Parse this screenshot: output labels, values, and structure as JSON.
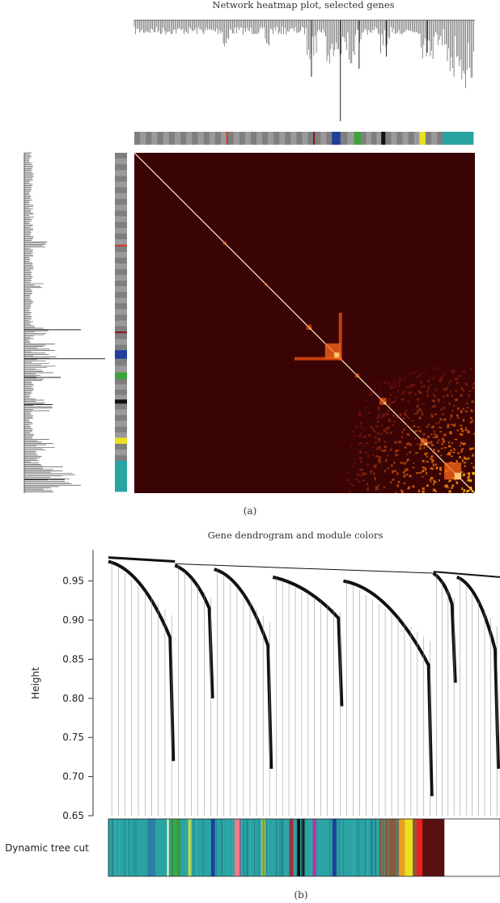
{
  "panel_a": {
    "title": "Network heatmap plot, selected genes",
    "caption": "(a)"
  },
  "panel_b": {
    "title": "Gene dendrogram and module colors",
    "ylabel": "Height",
    "row_label": "Dynamic tree cut",
    "caption": "(b)"
  },
  "chart_data": [
    {
      "type": "heatmap",
      "title": "Network heatmap plot, selected genes",
      "description_values": "gene-gene topological overlap, ordered by dendrogram",
      "module_color_bar": [
        {
          "color": "#8b8b8b",
          "fraction": 0.27
        },
        {
          "color": "#d23a2a",
          "fraction": 0.005
        },
        {
          "color": "#8b8b8b",
          "fraction": 0.25
        },
        {
          "color": "#8b1a1a",
          "fraction": 0.005
        },
        {
          "color": "#8b8b8b",
          "fraction": 0.05
        },
        {
          "color": "#1f3f9a",
          "fraction": 0.025
        },
        {
          "color": "#8b8b8b",
          "fraction": 0.04
        },
        {
          "color": "#3ca33c",
          "fraction": 0.02
        },
        {
          "color": "#8b8b8b",
          "fraction": 0.06
        },
        {
          "color": "#111111",
          "fraction": 0.012
        },
        {
          "color": "#8b8b8b",
          "fraction": 0.1
        },
        {
          "color": "#e8e020",
          "fraction": 0.018
        },
        {
          "color": "#8b8b8b",
          "fraction": 0.05
        },
        {
          "color": "#2aa3a3",
          "fraction": 0.09
        }
      ],
      "module_blocks": [
        {
          "position": 0.27,
          "size": 0.01,
          "intensity": 0.7
        },
        {
          "position": 0.39,
          "size": 0.008,
          "intensity": 0.6
        },
        {
          "position": 0.52,
          "size": 0.015,
          "intensity": 0.8
        },
        {
          "position": 0.605,
          "size": 0.045,
          "intensity": 1.0
        },
        {
          "position": 0.66,
          "size": 0.012,
          "intensity": 0.8
        },
        {
          "position": 0.74,
          "size": 0.02,
          "intensity": 0.85
        },
        {
          "position": 0.86,
          "size": 0.02,
          "intensity": 0.9
        },
        {
          "position": 0.96,
          "size": 0.05,
          "intensity": 1.0
        }
      ]
    },
    {
      "type": "dendrogram",
      "title": "Gene dendrogram and module colors",
      "ylabel": "Height",
      "ylim": [
        0.65,
        0.99
      ],
      "yticks": [
        "0.65",
        "0.70",
        "0.75",
        "0.80",
        "0.85",
        "0.90",
        "0.95"
      ],
      "ytick_values": [
        0.65,
        0.7,
        0.75,
        0.8,
        0.85,
        0.9,
        0.95
      ],
      "clusters": [
        {
          "start": 0.0,
          "end": 0.17,
          "top": 0.975,
          "bottom": 0.72
        },
        {
          "start": 0.17,
          "end": 0.27,
          "top": 0.97,
          "bottom": 0.8
        },
        {
          "start": 0.27,
          "end": 0.42,
          "top": 0.965,
          "bottom": 0.71
        },
        {
          "start": 0.42,
          "end": 0.6,
          "top": 0.955,
          "bottom": 0.79
        },
        {
          "start": 0.6,
          "end": 0.83,
          "top": 0.95,
          "bottom": 0.675
        },
        {
          "start": 0.83,
          "end": 0.89,
          "top": 0.96,
          "bottom": 0.82
        },
        {
          "start": 0.89,
          "end": 1.0,
          "top": 0.955,
          "bottom": 0.71
        }
      ],
      "module_color_row": [
        {
          "color": "#2aa3a3",
          "fraction": 0.1
        },
        {
          "color": "#2a7fa3",
          "fraction": 0.02
        },
        {
          "color": "#2aa3a3",
          "fraction": 0.03
        },
        {
          "color": "#ffffff",
          "fraction": 0.004
        },
        {
          "color": "#3ca33c",
          "fraction": 0.03
        },
        {
          "color": "#2aa3a3",
          "fraction": 0.02
        },
        {
          "color": "#e8e020",
          "fraction": 0.008
        },
        {
          "color": "#2aa3a3",
          "fraction": 0.05
        },
        {
          "color": "#1f3f9a",
          "fraction": 0.01
        },
        {
          "color": "#2aa3a3",
          "fraction": 0.05
        },
        {
          "color": "#f07a8a",
          "fraction": 0.018
        },
        {
          "color": "#2aa3a3",
          "fraction": 0.05
        },
        {
          "color": "#a0c040",
          "fraction": 0.012
        },
        {
          "color": "#2aa3a3",
          "fraction": 0.06
        },
        {
          "color": "#c01e2e",
          "fraction": 0.01
        },
        {
          "color": "#2aa3a3",
          "fraction": 0.01
        },
        {
          "color": "#111111",
          "fraction": 0.02
        },
        {
          "color": "#2aa3a3",
          "fraction": 0.02
        },
        {
          "color": "#c02aa3",
          "fraction": 0.01
        },
        {
          "color": "#2aa3a3",
          "fraction": 0.04
        },
        {
          "color": "#1f3f9a",
          "fraction": 0.01
        },
        {
          "color": "#2aa3a3",
          "fraction": 0.11
        },
        {
          "color": "#8a5a3a",
          "fraction": 0.05
        },
        {
          "color": "#e8a020",
          "fraction": 0.015
        },
        {
          "color": "#e8e020",
          "fraction": 0.02
        },
        {
          "color": "#8a5a3a",
          "fraction": 0.01
        },
        {
          "color": "#e82020",
          "fraction": 0.015
        },
        {
          "color": "#5a1010",
          "fraction": 0.055
        }
      ]
    }
  ]
}
